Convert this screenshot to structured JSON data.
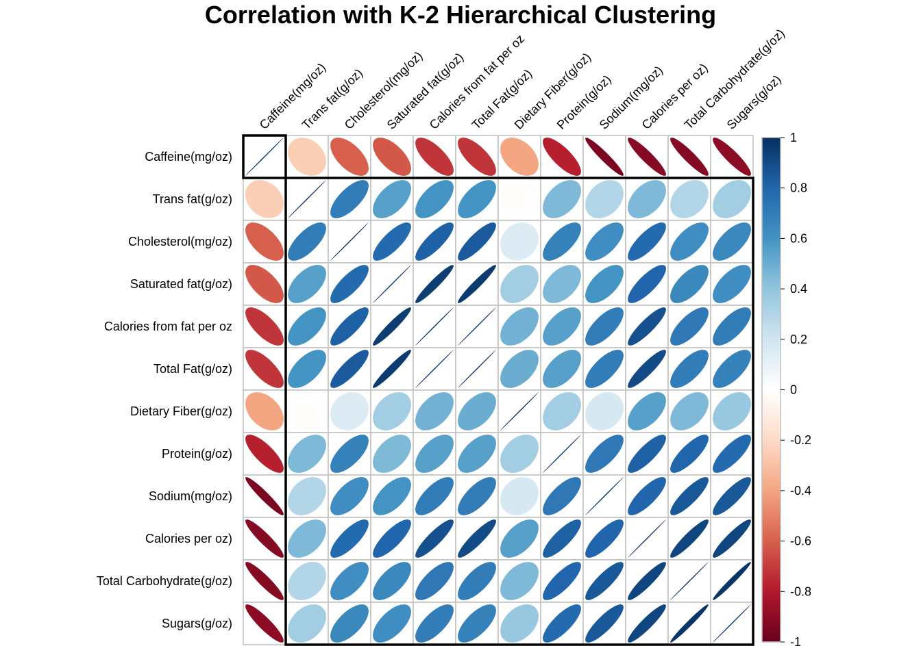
{
  "chart_data": {
    "type": "heatmap",
    "title": "Correlation with K-2 Hierarchical Clustering",
    "variables": [
      "Caffeine(mg/oz)",
      "Trans fat(g/oz)",
      "Cholesterol(mg/oz)",
      "Saturated fat(g/oz)",
      "Calories from fat per oz",
      "Total Fat(g/oz)",
      "Dietary Fiber(g/oz)",
      "Protein(g/oz)",
      "Sodium(mg/oz)",
      "Calories per oz)",
      "Total Carbohydrate(g/oz)",
      "Sugars(g/oz)"
    ],
    "matrix": [
      [
        1,
        -0.25,
        -0.6,
        -0.62,
        -0.72,
        -0.72,
        -0.4,
        -0.78,
        -0.95,
        -0.92,
        -0.92,
        -0.9
      ],
      [
        -0.25,
        1,
        0.7,
        0.55,
        0.6,
        0.6,
        -0.01,
        0.45,
        0.3,
        0.45,
        0.3,
        0.35
      ],
      [
        -0.6,
        0.7,
        1,
        0.78,
        0.82,
        0.84,
        0.15,
        0.68,
        0.62,
        0.78,
        0.62,
        0.65
      ],
      [
        -0.62,
        0.55,
        0.78,
        1,
        0.95,
        0.96,
        0.35,
        0.45,
        0.6,
        0.8,
        0.65,
        0.62
      ],
      [
        -0.72,
        0.6,
        0.82,
        0.95,
        1,
        1,
        0.48,
        0.55,
        0.7,
        0.88,
        0.72,
        0.7
      ],
      [
        -0.72,
        0.6,
        0.84,
        0.96,
        1,
        1,
        0.5,
        0.55,
        0.7,
        0.9,
        0.7,
        0.68
      ],
      [
        -0.4,
        -0.01,
        0.15,
        0.35,
        0.48,
        0.5,
        1,
        0.35,
        0.18,
        0.55,
        0.45,
        0.38
      ],
      [
        -0.78,
        0.45,
        0.68,
        0.45,
        0.55,
        0.55,
        0.35,
        1,
        0.72,
        0.82,
        0.8,
        0.78
      ],
      [
        -0.95,
        0.3,
        0.62,
        0.6,
        0.7,
        0.7,
        0.18,
        0.72,
        1,
        0.8,
        0.85,
        0.85
      ],
      [
        -0.92,
        0.45,
        0.78,
        0.8,
        0.88,
        0.9,
        0.55,
        0.82,
        0.8,
        1,
        0.92,
        0.92
      ],
      [
        -0.92,
        0.3,
        0.62,
        0.65,
        0.72,
        0.7,
        0.45,
        0.8,
        0.85,
        0.92,
        1,
        0.98
      ],
      [
        -0.9,
        0.35,
        0.65,
        0.62,
        0.7,
        0.68,
        0.38,
        0.78,
        0.85,
        0.92,
        0.98,
        1
      ]
    ],
    "clusters": [
      [
        0,
        0
      ],
      [
        1,
        11
      ]
    ],
    "colorbar_ticks": [
      "1",
      "0.8",
      "0.6",
      "0.4",
      "0.2",
      "0",
      "-0.2",
      "-0.4",
      "-0.6",
      "-0.8",
      "-1"
    ],
    "colorbar_range": [
      -1,
      1
    ],
    "palette": [
      "#67001F",
      "#B2182B",
      "#D6604D",
      "#F4A582",
      "#FDDBC7",
      "#FFFFFF",
      "#D1E5F0",
      "#92C5DE",
      "#4393C3",
      "#2166AC",
      "#053061"
    ],
    "grid": true,
    "legend_position": "right"
  }
}
